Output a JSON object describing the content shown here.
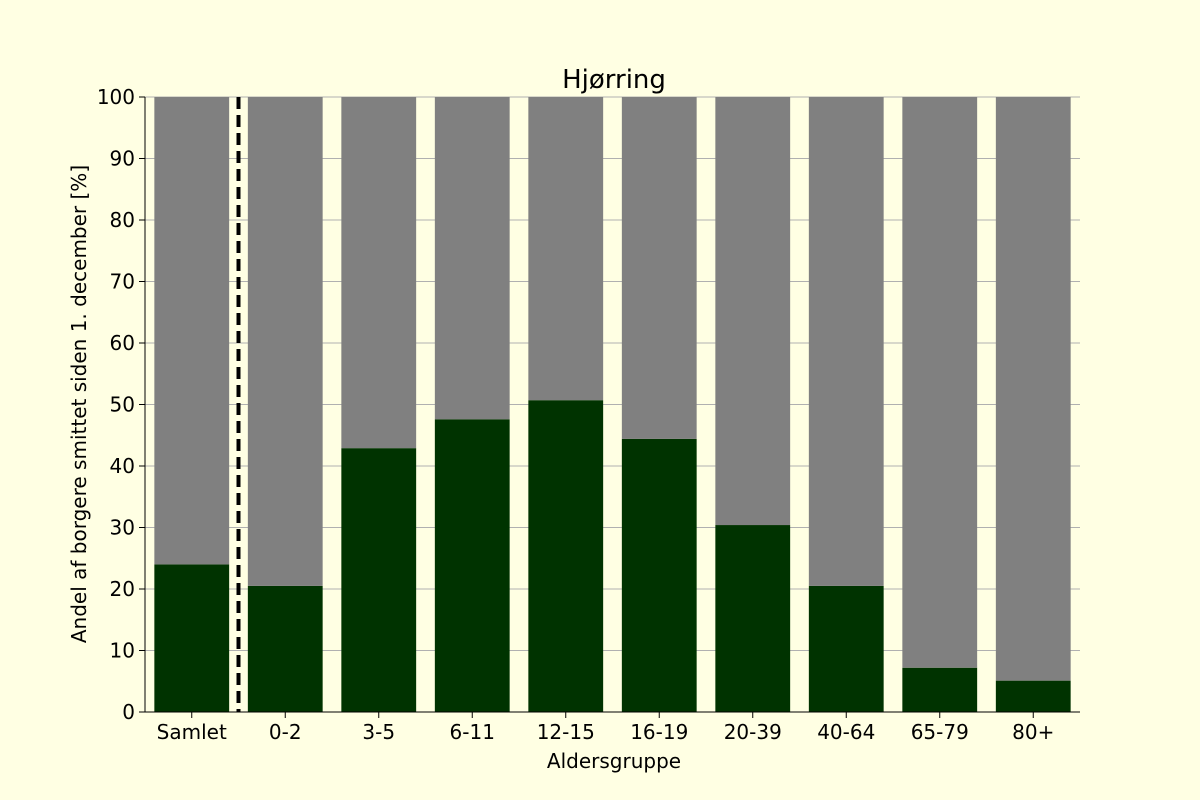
{
  "chart_data": {
    "type": "bar",
    "title": "Hjørring",
    "xlabel": "Aldersgruppe",
    "ylabel": "Andel af borgere smittet siden 1. december [%]",
    "categories": [
      "Samlet",
      "0-2",
      "3-5",
      "6-11",
      "12-15",
      "16-19",
      "20-39",
      "40-64",
      "65-79",
      "80+"
    ],
    "series": [
      {
        "values": [
          24.0,
          20.5,
          42.9,
          47.6,
          50.7,
          44.4,
          30.4,
          20.5,
          7.2,
          5.1
        ],
        "color": "#003300"
      },
      {
        "values": [
          76.0,
          79.5,
          57.1,
          52.4,
          49.3,
          55.6,
          69.6,
          79.5,
          92.8,
          94.9
        ],
        "color": "#808080"
      }
    ],
    "stacked": true,
    "ylim": [
      0,
      100
    ],
    "yticks": [
      0,
      10,
      20,
      30,
      40,
      50,
      60,
      70,
      80,
      90,
      100
    ],
    "grid": "horizontal",
    "separator_after_category": "Samlet",
    "background": "#ffffe3"
  }
}
